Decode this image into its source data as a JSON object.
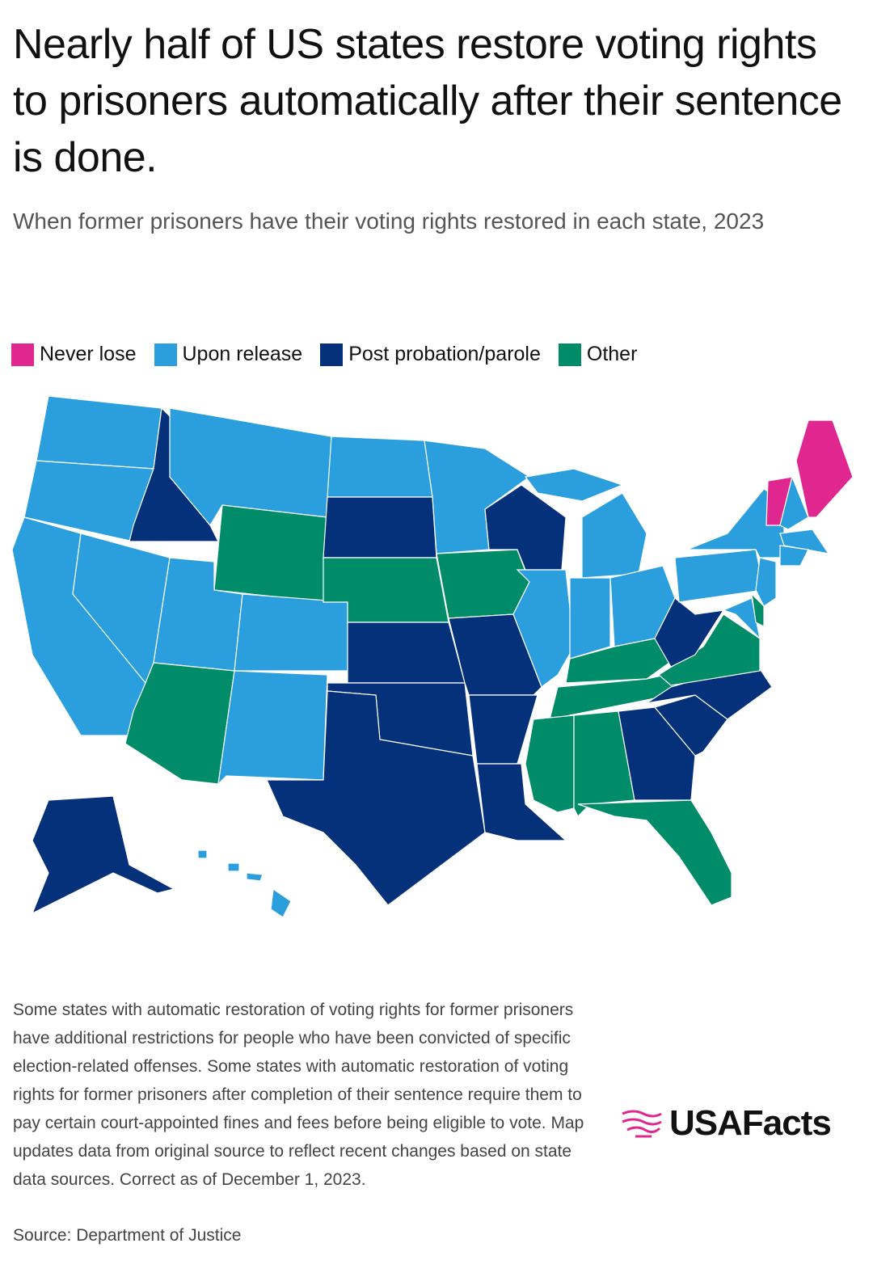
{
  "header": {
    "title": "Nearly half of US states restore voting rights to prisoners automatically after their sentence is done.",
    "subtitle": "When former prisoners have their voting rights restored in each state, 2023"
  },
  "legend": [
    {
      "label": "Never lose",
      "color": "#e0278f"
    },
    {
      "label": "Upon release",
      "color": "#2b9ede"
    },
    {
      "label": "Post probation/parole",
      "color": "#05317a"
    },
    {
      "label": "Other",
      "color": "#008c69"
    }
  ],
  "footer": {
    "note": "Some states with automatic restoration of voting rights for former prisoners have additional restrictions for people who have been convicted of specific election-related offenses. Some states with automatic restoration of voting rights for former prisoners after completion of their sentence require them to pay certain court-appointed fines and fees before being eligible to vote. Map updates data from original source to reflect recent changes based on state data sources. Correct as of December 1, 2023.",
    "source": "Source: Department of Justice",
    "logo": "USAFacts"
  }
}
